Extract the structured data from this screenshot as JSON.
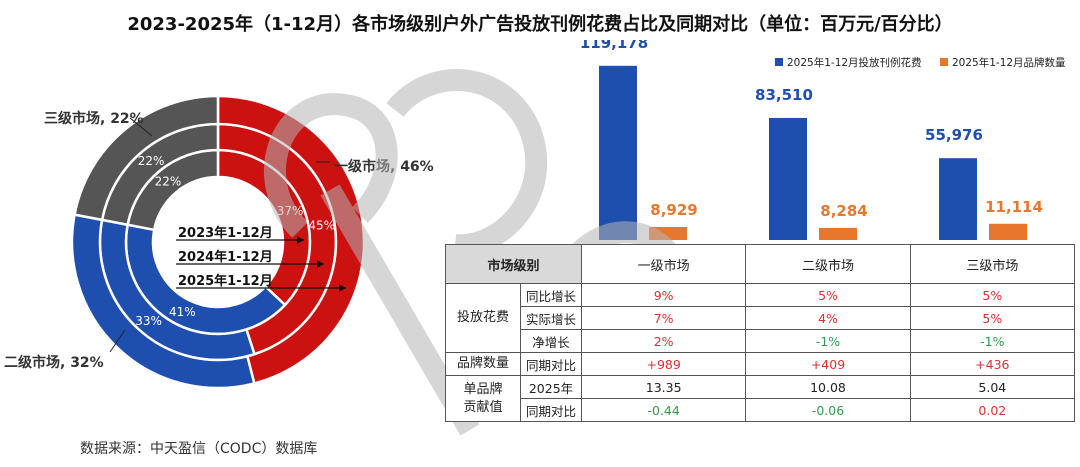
{
  "title": "2023-2025年（1-12月）各市场级别户外广告投放刊例花费占比及同期对比（单位：百万元/百分比）",
  "source": "数据来源：中天盈信（CODC）数据库",
  "colors": {
    "tier1": "#cc1111",
    "tier2": "#1f4fae",
    "tier3": "#555555",
    "brand_count": "#e8772e"
  },
  "donut": {
    "market_labels": [
      "一级市场, 46%",
      "二级市场, 32%",
      "三级市场, 22%"
    ],
    "year_labels": [
      "2023年1-12月",
      "2024年1-12月",
      "2025年1-12月"
    ]
  },
  "chart_data": [
    {
      "type": "pie",
      "variant": "nested-donut",
      "categories": [
        "一级市场",
        "二级市场",
        "三级市场"
      ],
      "rings": [
        {
          "name": "2023年1-12月",
          "values": [
            37,
            41,
            22
          ]
        },
        {
          "name": "2024年1-12月",
          "values": [
            45,
            33,
            22
          ]
        },
        {
          "name": "2025年1-12月",
          "values": [
            46,
            32,
            22
          ]
        }
      ],
      "value_labels": [
        [
          "37%",
          "41%",
          "22%"
        ],
        [
          "45%",
          "33%",
          "22%"
        ],
        [
          "",
          "",
          ""
        ]
      ]
    },
    {
      "type": "bar",
      "categories": [
        "一级市场",
        "二级市场",
        "三级市场"
      ],
      "series": [
        {
          "name": "2025年1-12月投放刊例花费",
          "values": [
            119178,
            83510,
            55976
          ],
          "labels": [
            "119,178",
            "83,510",
            "55,976"
          ]
        },
        {
          "name": "2025年1-12月品牌数量",
          "values": [
            8929,
            8284,
            11114
          ],
          "labels": [
            "8,929",
            "8,284",
            "11,114"
          ]
        }
      ],
      "ylim": [
        0,
        130000
      ],
      "legend": "top-right"
    }
  ],
  "table": {
    "header": [
      "市场级别",
      "一级市场",
      "二级市场",
      "三级市场"
    ],
    "rows": [
      {
        "group": "投放花费",
        "metric": "同比增长",
        "values": [
          "9%",
          "5%",
          "5%"
        ],
        "tones": [
          "pos",
          "pos",
          "pos"
        ]
      },
      {
        "group": "",
        "metric": "实际增长",
        "values": [
          "7%",
          "4%",
          "5%"
        ],
        "tones": [
          "pos",
          "pos",
          "pos"
        ]
      },
      {
        "group": "",
        "metric": "净增长",
        "values": [
          "2%",
          "-1%",
          "-1%"
        ],
        "tones": [
          "pos",
          "neg",
          "neg"
        ]
      },
      {
        "group": "品牌数量",
        "metric": "同期对比",
        "values": [
          "+989",
          "+409",
          "+436"
        ],
        "tones": [
          "pos",
          "pos",
          "pos"
        ]
      },
      {
        "group": "单品牌贡献值",
        "metric": "2025年",
        "values": [
          "13.35",
          "10.08",
          "5.04"
        ],
        "tones": [
          "neu",
          "neu",
          "neu"
        ]
      },
      {
        "group": "",
        "metric": "同期对比",
        "values": [
          "-0.44",
          "-0.06",
          "0.02"
        ],
        "tones": [
          "neg",
          "neg",
          "pos"
        ]
      }
    ]
  }
}
